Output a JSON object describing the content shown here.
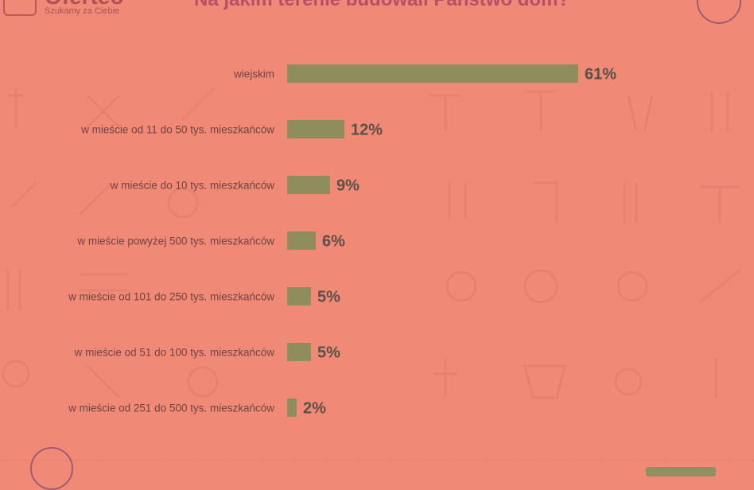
{
  "brand": {
    "name": "Oferteo",
    "tagline": "Szukamy za Ciebie"
  },
  "chart_data": {
    "type": "bar",
    "orientation": "horizontal",
    "title": "Na jakim terenie budowali Państwo dom?",
    "categories": [
      "wiejskim",
      "w mieście od 11 do 50 tys. mieszkańców",
      "w mieście do 10 tys. mieszkańców",
      "w mieście powyżej 500 tys. mieszkańców",
      "w mieście od 101 do 250 tys. mieszkańców",
      "w mieście od 51 do 100 tys. mieszkańców",
      "w mieście od 251 do 500 tys. mieszkańców"
    ],
    "values": [
      61,
      12,
      9,
      6,
      5,
      5,
      2
    ],
    "value_labels": [
      "61%",
      "12%",
      "9%",
      "6%",
      "5%",
      "5%",
      "2%"
    ],
    "unit": "%",
    "xlim": [
      0,
      100
    ],
    "grid": false,
    "legend": "none",
    "colors": {
      "bar": "#8d8d5e",
      "background": "#f08a76"
    }
  }
}
